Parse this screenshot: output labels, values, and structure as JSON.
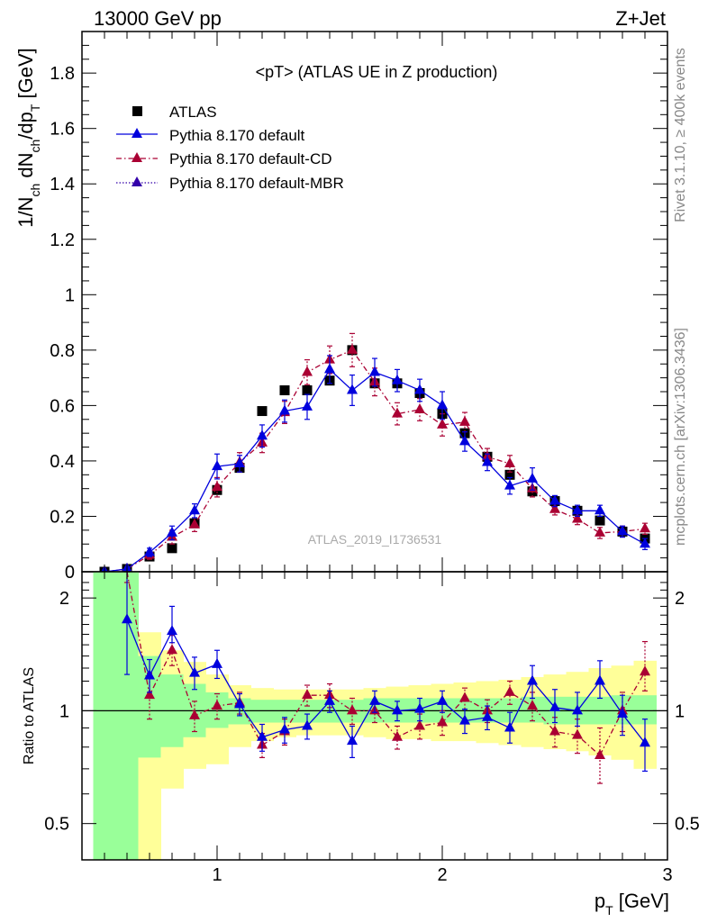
{
  "header": {
    "left": "13000 GeV pp",
    "right": "Z+Jet"
  },
  "side_labels": {
    "rivet": "Rivet 3.1.10, ≥ 400k events",
    "mcplots": "mcplots.cern.ch [arXiv:1306.3436]"
  },
  "chart_data": [
    {
      "type": "scatter",
      "title": "<pT> (ATLAS UE in Z production)",
      "watermark": "ATLAS_2019_I1736531",
      "xlabel": "p_T [GeV]",
      "ylabel": "1/N_ch dN_ch/dp_T [GeV]",
      "xlim": [
        0.4,
        3.0
      ],
      "ylim": [
        0,
        1.95
      ],
      "yticks": [
        "0",
        "0.2",
        "0.4",
        "0.6",
        "0.8",
        "1",
        "1.2",
        "1.4",
        "1.6",
        "1.8"
      ],
      "legend_position": "top-left",
      "x": [
        0.5,
        0.6,
        0.7,
        0.8,
        0.9,
        1.0,
        1.1,
        1.2,
        1.3,
        1.4,
        1.5,
        1.6,
        1.7,
        1.8,
        1.9,
        2.0,
        2.1,
        2.2,
        2.3,
        2.4,
        2.5,
        2.6,
        2.7,
        2.8,
        2.9
      ],
      "series": [
        {
          "name": "ATLAS",
          "color": "#000000",
          "marker": "square",
          "values": [
            0.0,
            0.01,
            0.055,
            0.085,
            0.175,
            0.295,
            0.375,
            0.58,
            0.655,
            0.655,
            0.69,
            0.8,
            0.68,
            0.68,
            0.645,
            0.57,
            0.5,
            0.415,
            0.35,
            0.29,
            0.255,
            0.22,
            0.185,
            0.145,
            0.12
          ]
        },
        {
          "name": "Pythia 8.170 default",
          "color": "#0000dd",
          "marker": "triangle",
          "line": "solid",
          "values": [
            0.0,
            0.01,
            0.07,
            0.14,
            0.22,
            0.38,
            0.39,
            0.49,
            0.58,
            0.595,
            0.73,
            0.655,
            0.72,
            0.69,
            0.655,
            0.6,
            0.47,
            0.395,
            0.31,
            0.335,
            0.255,
            0.22,
            0.22,
            0.145,
            0.1
          ],
          "errors": [
            0.0,
            0.005,
            0.015,
            0.025,
            0.025,
            0.045,
            0.03,
            0.04,
            0.04,
            0.045,
            0.05,
            0.055,
            0.05,
            0.04,
            0.04,
            0.05,
            0.035,
            0.03,
            0.03,
            0.04,
            0.02,
            0.02,
            0.02,
            0.02,
            0.02
          ]
        },
        {
          "name": "Pythia 8.170 default-CD",
          "color": "#aa0033",
          "marker": "triangle",
          "line": "dashdot",
          "values": [
            0.0,
            0.01,
            0.06,
            0.125,
            0.17,
            0.305,
            0.395,
            0.465,
            0.575,
            0.72,
            0.765,
            0.8,
            0.685,
            0.57,
            0.585,
            0.53,
            0.54,
            0.415,
            0.39,
            0.3,
            0.225,
            0.19,
            0.14,
            0.145,
            0.155
          ],
          "errors": [
            0.0,
            0.005,
            0.015,
            0.025,
            0.025,
            0.035,
            0.035,
            0.035,
            0.04,
            0.045,
            0.05,
            0.06,
            0.05,
            0.04,
            0.04,
            0.04,
            0.035,
            0.03,
            0.03,
            0.03,
            0.02,
            0.02,
            0.02,
            0.02,
            0.02
          ]
        },
        {
          "name": "Pythia 8.170 default-MBR",
          "color": "#3300aa",
          "marker": "triangle",
          "line": "dotted",
          "values": []
        }
      ]
    },
    {
      "type": "line",
      "ylabel": "Ratio to ATLAS",
      "xlabel": "p_T [GeV]",
      "log_y": true,
      "ylim": [
        0.4,
        2.35
      ],
      "yticks": [
        "0.5",
        "1",
        "2"
      ],
      "xticks": [
        "1",
        "2",
        "3"
      ],
      "x": [
        0.6,
        0.7,
        0.8,
        0.9,
        1.0,
        1.1,
        1.2,
        1.3,
        1.4,
        1.5,
        1.6,
        1.7,
        1.8,
        1.9,
        2.0,
        2.1,
        2.2,
        2.3,
        2.4,
        2.5,
        2.6,
        2.7,
        2.8,
        2.9
      ],
      "bands": {
        "stat_color": "#99ff99",
        "total_color": "#ffff99",
        "bin_edges": [
          0.45,
          0.55,
          0.65,
          0.75,
          0.85,
          0.95,
          1.05,
          1.15,
          1.25,
          1.35,
          1.45,
          1.55,
          1.65,
          1.75,
          1.85,
          1.95,
          2.05,
          2.15,
          2.25,
          2.35,
          2.45,
          2.55,
          2.65,
          2.75,
          2.85,
          2.95
        ],
        "stat": [
          [
            0.3,
            3.0
          ],
          [
            0.3,
            3.0
          ],
          [
            0.75,
            1.4
          ],
          [
            0.8,
            1.25
          ],
          [
            0.85,
            1.18
          ],
          [
            0.9,
            1.12
          ],
          [
            0.92,
            1.08
          ],
          [
            0.93,
            1.07
          ],
          [
            0.93,
            1.07
          ],
          [
            0.93,
            1.07
          ],
          [
            0.93,
            1.07
          ],
          [
            0.93,
            1.07
          ],
          [
            0.93,
            1.08
          ],
          [
            0.93,
            1.08
          ],
          [
            0.93,
            1.08
          ],
          [
            0.93,
            1.08
          ],
          [
            0.93,
            1.08
          ],
          [
            0.93,
            1.08
          ],
          [
            0.93,
            1.08
          ],
          [
            0.93,
            1.09
          ],
          [
            0.92,
            1.09
          ],
          [
            0.92,
            1.09
          ],
          [
            0.92,
            1.09
          ],
          [
            0.92,
            1.1
          ],
          [
            0.92,
            1.1
          ]
        ],
        "total": [
          [
            0.3,
            3.0
          ],
          [
            0.3,
            3.0
          ],
          [
            0.4,
            1.62
          ],
          [
            0.62,
            1.45
          ],
          [
            0.7,
            1.35
          ],
          [
            0.72,
            1.25
          ],
          [
            0.8,
            1.17
          ],
          [
            0.83,
            1.15
          ],
          [
            0.85,
            1.14
          ],
          [
            0.86,
            1.14
          ],
          [
            0.86,
            1.14
          ],
          [
            0.86,
            1.14
          ],
          [
            0.85,
            1.15
          ],
          [
            0.84,
            1.16
          ],
          [
            0.84,
            1.17
          ],
          [
            0.83,
            1.18
          ],
          [
            0.83,
            1.19
          ],
          [
            0.82,
            1.2
          ],
          [
            0.81,
            1.21
          ],
          [
            0.8,
            1.23
          ],
          [
            0.79,
            1.25
          ],
          [
            0.78,
            1.27
          ],
          [
            0.76,
            1.3
          ],
          [
            0.74,
            1.32
          ],
          [
            0.7,
            1.36
          ]
        ]
      },
      "series": [
        {
          "name": "Pythia 8.170 default",
          "color": "#0000dd",
          "values": [
            1.75,
            1.24,
            1.63,
            1.26,
            1.33,
            1.04,
            0.85,
            0.89,
            0.91,
            1.06,
            0.83,
            1.06,
            1.0,
            1.01,
            1.06,
            0.94,
            0.96,
            0.9,
            1.2,
            1.02,
            1.0,
            1.2,
            0.98,
            0.82
          ],
          "err_lo": [
            0.5,
            0.12,
            0.11,
            0.12,
            0.11,
            0.07,
            0.07,
            0.07,
            0.07,
            0.07,
            0.08,
            0.07,
            0.06,
            0.07,
            0.07,
            0.07,
            0.07,
            0.08,
            0.12,
            0.09,
            0.09,
            0.12,
            0.12,
            0.13
          ],
          "err_hi": [
            0.6,
            0.13,
            0.27,
            0.13,
            0.12,
            0.07,
            0.07,
            0.07,
            0.07,
            0.07,
            0.08,
            0.07,
            0.06,
            0.07,
            0.07,
            0.07,
            0.07,
            0.09,
            0.12,
            0.12,
            0.12,
            0.16,
            0.12,
            0.13
          ]
        },
        {
          "name": "Pythia 8.170 default-CD",
          "color": "#aa0033",
          "values": [
            2.5,
            1.1,
            1.45,
            0.97,
            1.03,
            1.05,
            0.81,
            0.88,
            1.1,
            1.1,
            1.0,
            1.0,
            0.85,
            0.91,
            0.93,
            1.08,
            1.0,
            1.12,
            1.03,
            0.88,
            0.86,
            0.76,
            1.0,
            1.27
          ],
          "err_lo": [
            0.3,
            0.15,
            0.13,
            0.09,
            0.08,
            0.07,
            0.06,
            0.07,
            0.07,
            0.08,
            0.08,
            0.07,
            0.06,
            0.07,
            0.07,
            0.07,
            0.07,
            0.08,
            0.09,
            0.08,
            0.09,
            0.12,
            0.12,
            0.14
          ],
          "err_hi": [
            0.3,
            0.16,
            0.14,
            0.09,
            0.08,
            0.07,
            0.06,
            0.07,
            0.07,
            0.08,
            0.08,
            0.07,
            0.06,
            0.07,
            0.07,
            0.07,
            0.07,
            0.08,
            0.09,
            0.08,
            0.09,
            0.14,
            0.12,
            0.26
          ]
        }
      ]
    }
  ]
}
